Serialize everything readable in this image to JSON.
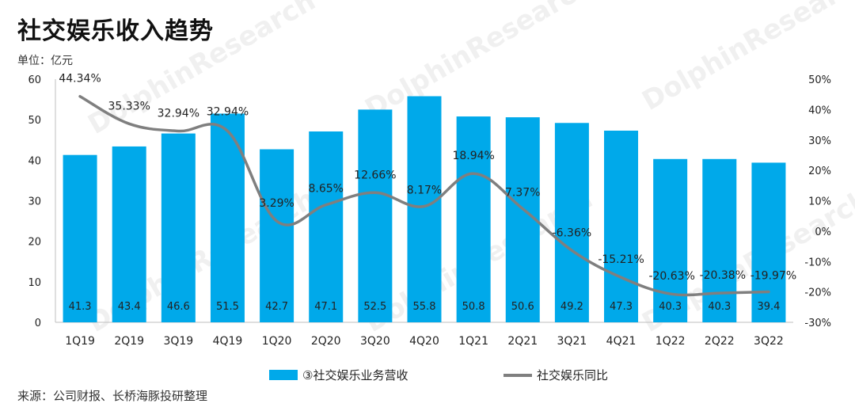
{
  "title": "社交娱乐收入趋势",
  "unit": "单位：亿元",
  "source": "来源：公司财报、长桥海豚投研整理",
  "watermark": "DolphinResearch",
  "colors": {
    "bar": "#00a9ea",
    "line": "#7f7f7f"
  },
  "chart_data": {
    "type": "bar",
    "categories": [
      "1Q19",
      "2Q19",
      "3Q19",
      "4Q19",
      "1Q20",
      "2Q20",
      "3Q20",
      "4Q20",
      "1Q21",
      "2Q21",
      "3Q21",
      "4Q21",
      "1Q22",
      "2Q22",
      "3Q22"
    ],
    "series": [
      {
        "name": "③社交娱乐业务营收",
        "type": "bar",
        "axis": "left",
        "values": [
          41.3,
          43.4,
          46.6,
          51.5,
          42.7,
          47.1,
          52.5,
          55.8,
          50.8,
          50.6,
          49.2,
          47.3,
          40.3,
          40.3,
          39.4
        ],
        "labels": [
          "41.3",
          "43.4",
          "46.6",
          "51.5",
          "42.7",
          "47.1",
          "52.5",
          "55.8",
          "50.8",
          "50.6",
          "49.2",
          "47.3",
          "40.3",
          "40.3",
          "39.4"
        ]
      },
      {
        "name": "社交娱乐同比",
        "type": "line",
        "axis": "right",
        "values": [
          44.34,
          35.33,
          32.94,
          32.94,
          3.29,
          8.65,
          12.66,
          8.17,
          18.94,
          7.37,
          -6.36,
          -15.21,
          -20.63,
          -20.38,
          -19.97
        ],
        "labels": [
          "44.34%",
          "35.33%",
          "32.94%",
          "32.94%",
          "3.29%",
          "8.65%",
          "12.66%",
          "8.17%",
          "18.94%",
          "7.37%",
          "-6.36%",
          "-15.21%",
          "-20.63%",
          "-20.38%",
          "-19.97%"
        ]
      }
    ],
    "ylim_left": [
      0,
      60
    ],
    "yticks_left": [
      "0",
      "10",
      "20",
      "30",
      "40",
      "50",
      "60"
    ],
    "ylim_right": [
      -30,
      50
    ],
    "yticks_right": [
      "-30%",
      "-20%",
      "-10%",
      "0%",
      "10%",
      "20%",
      "30%",
      "40%",
      "50%"
    ],
    "legend_position": "bottom"
  }
}
